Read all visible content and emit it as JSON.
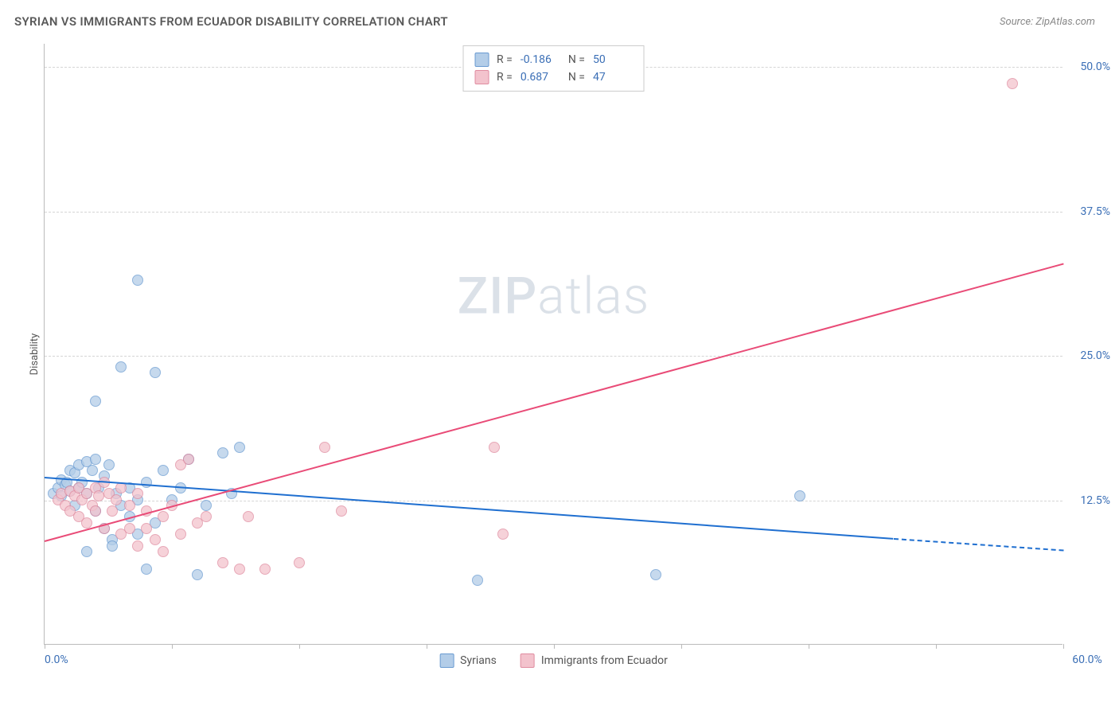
{
  "header": {
    "title": "SYRIAN VS IMMIGRANTS FROM ECUADOR DISABILITY CORRELATION CHART",
    "source": "Source: ZipAtlas.com"
  },
  "chart": {
    "type": "scatter",
    "ylabel": "Disability",
    "xlim": [
      0,
      60
    ],
    "ylim": [
      0,
      52
    ],
    "xtick_positions": [
      0,
      7.5,
      15,
      22.5,
      30,
      37.5,
      45,
      52.5,
      60
    ],
    "xtick_labels_shown": {
      "0": "0.0%",
      "60": "60.0%"
    },
    "ytick_positions": [
      12.5,
      25.0,
      37.5,
      50.0
    ],
    "ytick_labels": [
      "12.5%",
      "25.0%",
      "37.5%",
      "50.0%"
    ],
    "grid_color": "#d5d5d5",
    "background_color": "#ffffff",
    "axis_color": "#bbbbbb",
    "tick_label_color": "#3b6fb6",
    "axis_label_color": "#555555",
    "watermark": "ZIPatlas",
    "series": [
      {
        "name": "Syrians",
        "fill_color": "#b3cde8",
        "stroke_color": "#6a9bd1",
        "trend_color": "#1f6fd0",
        "R": "-0.186",
        "N": "50",
        "trend": {
          "x1": 0,
          "y1": 14.5,
          "x2": 50,
          "y2": 9.2,
          "dash_from_x": 50,
          "x2_dash": 60,
          "y2_dash": 8.2
        },
        "points": [
          [
            0.5,
            13.0
          ],
          [
            0.8,
            13.5
          ],
          [
            1.0,
            14.2
          ],
          [
            1.0,
            12.8
          ],
          [
            1.2,
            13.8
          ],
          [
            1.3,
            14.0
          ],
          [
            1.5,
            15.0
          ],
          [
            1.5,
            13.2
          ],
          [
            1.8,
            14.8
          ],
          [
            1.8,
            12.0
          ],
          [
            2.0,
            15.5
          ],
          [
            2.0,
            13.5
          ],
          [
            2.2,
            14.0
          ],
          [
            2.5,
            15.8
          ],
          [
            2.5,
            13.0
          ],
          [
            2.8,
            15.0
          ],
          [
            3.0,
            16.0
          ],
          [
            3.0,
            11.5
          ],
          [
            3.2,
            13.5
          ],
          [
            3.5,
            14.5
          ],
          [
            3.5,
            10.0
          ],
          [
            3.8,
            15.5
          ],
          [
            4.0,
            9.0
          ],
          [
            4.0,
            8.5
          ],
          [
            4.2,
            13.0
          ],
          [
            4.5,
            12.0
          ],
          [
            3.0,
            21.0
          ],
          [
            4.5,
            24.0
          ],
          [
            5.0,
            13.5
          ],
          [
            5.0,
            11.0
          ],
          [
            5.5,
            12.5
          ],
          [
            5.5,
            9.5
          ],
          [
            6.0,
            6.5
          ],
          [
            6.0,
            14.0
          ],
          [
            6.5,
            10.5
          ],
          [
            6.5,
            23.5
          ],
          [
            5.5,
            31.5
          ],
          [
            7.0,
            15.0
          ],
          [
            7.5,
            12.5
          ],
          [
            8.0,
            13.5
          ],
          [
            8.5,
            16.0
          ],
          [
            9.0,
            6.0
          ],
          [
            9.5,
            12.0
          ],
          [
            10.5,
            16.5
          ],
          [
            11.5,
            17.0
          ],
          [
            11.0,
            13.0
          ],
          [
            25.5,
            5.5
          ],
          [
            36.0,
            6.0
          ],
          [
            44.5,
            12.8
          ],
          [
            2.5,
            8.0
          ]
        ]
      },
      {
        "name": "Immigrants from Ecuador",
        "fill_color": "#f3c3cd",
        "stroke_color": "#e08ca0",
        "trend_color": "#e94b77",
        "R": "0.687",
        "N": "47",
        "trend": {
          "x1": 0,
          "y1": 9.0,
          "x2": 60,
          "y2": 33.0
        },
        "points": [
          [
            0.8,
            12.5
          ],
          [
            1.0,
            13.0
          ],
          [
            1.2,
            12.0
          ],
          [
            1.5,
            13.2
          ],
          [
            1.5,
            11.5
          ],
          [
            1.8,
            12.8
          ],
          [
            2.0,
            13.5
          ],
          [
            2.0,
            11.0
          ],
          [
            2.2,
            12.5
          ],
          [
            2.5,
            13.0
          ],
          [
            2.5,
            10.5
          ],
          [
            2.8,
            12.0
          ],
          [
            3.0,
            13.5
          ],
          [
            3.0,
            11.5
          ],
          [
            3.2,
            12.8
          ],
          [
            3.5,
            14.0
          ],
          [
            3.5,
            10.0
          ],
          [
            3.8,
            13.0
          ],
          [
            4.0,
            11.5
          ],
          [
            4.2,
            12.5
          ],
          [
            4.5,
            13.5
          ],
          [
            4.5,
            9.5
          ],
          [
            5.0,
            12.0
          ],
          [
            5.0,
            10.0
          ],
          [
            5.5,
            13.0
          ],
          [
            5.5,
            8.5
          ],
          [
            6.0,
            11.5
          ],
          [
            6.0,
            10.0
          ],
          [
            6.5,
            9.0
          ],
          [
            7.0,
            11.0
          ],
          [
            7.0,
            8.0
          ],
          [
            7.5,
            12.0
          ],
          [
            8.0,
            9.5
          ],
          [
            8.0,
            15.5
          ],
          [
            8.5,
            16.0
          ],
          [
            9.0,
            10.5
          ],
          [
            9.5,
            11.0
          ],
          [
            10.5,
            7.0
          ],
          [
            11.5,
            6.5
          ],
          [
            12.0,
            11.0
          ],
          [
            13.0,
            6.5
          ],
          [
            15.0,
            7.0
          ],
          [
            16.5,
            17.0
          ],
          [
            17.5,
            11.5
          ],
          [
            26.5,
            17.0
          ],
          [
            27.0,
            9.5
          ],
          [
            57.0,
            48.5
          ]
        ]
      }
    ],
    "legend_top": {
      "rows": [
        {
          "swatch": 0,
          "r_label": "R =",
          "r_val": "-0.186",
          "n_label": "N =",
          "n_val": "50"
        },
        {
          "swatch": 1,
          "r_label": "R =",
          "r_val": "0.687",
          "n_label": "N =",
          "n_val": "47"
        }
      ]
    },
    "legend_bottom": [
      {
        "swatch": 0,
        "label": "Syrians"
      },
      {
        "swatch": 1,
        "label": "Immigrants from Ecuador"
      }
    ]
  }
}
